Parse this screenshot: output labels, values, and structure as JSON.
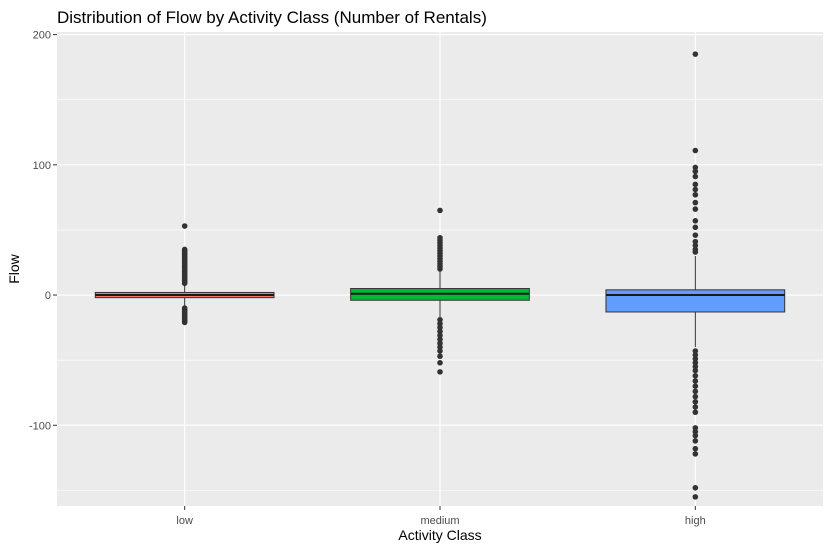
{
  "chart_data": {
    "type": "boxplot",
    "title": "Distribution of Flow by Activity Class (Number of Rentals)",
    "xlabel": "Activity Class",
    "ylabel": "Flow",
    "ylim": [
      -162,
      202
    ],
    "yticks": [
      -100,
      0,
      100,
      200
    ],
    "grid": true,
    "legend": "none",
    "categories": [
      "low",
      "medium",
      "high"
    ],
    "boxes": [
      {
        "category": "low",
        "fill": "#F8766D",
        "q1": -2,
        "median": 0,
        "q3": 2,
        "whisker_low": -8,
        "whisker_high": 8,
        "outliers": [
          -21,
          -20,
          -19,
          -18,
          -17,
          -16,
          -15,
          -14,
          -13,
          -12,
          -11,
          -10,
          9,
          10,
          11,
          12,
          13,
          14,
          15,
          16,
          17,
          18,
          19,
          20,
          21,
          22,
          23,
          24,
          25,
          26,
          27,
          28,
          29,
          30,
          31,
          32,
          33,
          34,
          35,
          53
        ]
      },
      {
        "category": "medium",
        "fill": "#00BA38",
        "q1": -4,
        "median": 1,
        "q3": 5,
        "whisker_low": -17,
        "whisker_high": 18,
        "outliers": [
          -59,
          -52,
          -47,
          -43,
          -40,
          -37,
          -34,
          -31,
          -28,
          -25,
          -22,
          -19,
          20,
          22,
          24,
          26,
          28,
          30,
          32,
          34,
          36,
          38,
          40,
          42,
          44,
          65
        ]
      },
      {
        "category": "high",
        "fill": "#619CFF",
        "q1": -13,
        "median": 0,
        "q3": 4,
        "whisker_low": -40,
        "whisker_high": 30,
        "outliers": [
          -155,
          -148,
          -122,
          -118,
          -112,
          -108,
          -105,
          -102,
          -90,
          -86,
          -82,
          -78,
          -74,
          -70,
          -66,
          -62,
          -58,
          -55,
          -52,
          -49,
          -46,
          -43,
          33,
          35,
          38,
          41,
          46,
          52,
          57,
          66,
          71,
          77,
          81,
          85,
          91,
          95,
          98,
          111,
          185
        ]
      }
    ]
  }
}
